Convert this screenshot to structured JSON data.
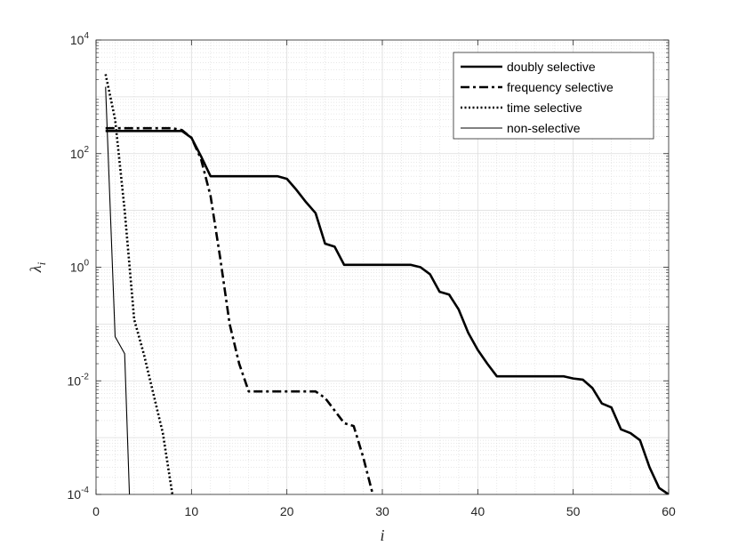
{
  "chart_data": {
    "type": "line",
    "title": "",
    "xlabel": "i",
    "ylabel": "λ_i",
    "ylabel_base": "λ",
    "ylabel_sub": "i",
    "xlim": [
      0,
      60
    ],
    "ylim": [
      0.0001,
      10000
    ],
    "yscale": "log",
    "grid": true,
    "legend_position": "top-right",
    "x_ticks": [
      0,
      10,
      20,
      30,
      40,
      50,
      60
    ],
    "y_ticks": [
      {
        "base": "10",
        "exp": "-4"
      },
      {
        "base": "10",
        "exp": "-2"
      },
      {
        "base": "10",
        "exp": "0"
      },
      {
        "base": "10",
        "exp": "2"
      },
      {
        "base": "10",
        "exp": "4"
      }
    ],
    "series": [
      {
        "name": "doubly selective",
        "style": "solid-thick",
        "x": [
          1,
          9,
          10,
          11,
          12,
          19,
          20,
          21,
          22,
          23,
          24,
          25,
          26,
          33,
          34,
          35,
          36,
          37,
          38,
          39,
          40,
          41,
          42,
          49,
          50,
          51,
          52,
          53,
          54,
          55,
          56,
          57,
          58,
          59,
          60
        ],
        "y": [
          250,
          250,
          190,
          90,
          40,
          40,
          36,
          23,
          14,
          9,
          2.6,
          2.3,
          1.1,
          1.1,
          1.0,
          0.75,
          0.37,
          0.33,
          0.18,
          0.07,
          0.035,
          0.02,
          0.012,
          0.012,
          0.011,
          0.0105,
          0.0075,
          0.004,
          0.0034,
          0.0014,
          0.0012,
          0.0009,
          0.0003,
          0.00013,
          0.0001
        ]
      },
      {
        "name": "frequency selective",
        "style": "dashdot-thick",
        "x": [
          1,
          8,
          9,
          10,
          11,
          12,
          13,
          14,
          15,
          16,
          23,
          24,
          25,
          26,
          27,
          28,
          29
        ],
        "y": [
          280,
          280,
          260,
          190,
          80,
          18,
          1.5,
          0.1,
          0.02,
          0.0065,
          0.0065,
          0.005,
          0.003,
          0.0018,
          0.0016,
          0.00045,
          0.0001
        ]
      },
      {
        "name": "time selective",
        "style": "dotted-thick",
        "x": [
          1,
          2,
          3,
          4,
          5,
          6,
          7,
          8
        ],
        "y": [
          2500,
          400,
          10,
          0.12,
          0.03,
          0.006,
          0.0012,
          0.0001
        ]
      },
      {
        "name": "non-selective",
        "style": "solid-thin",
        "x": [
          1,
          2,
          3,
          3.5
        ],
        "y": [
          1500,
          0.06,
          0.03,
          0.0001
        ]
      }
    ]
  }
}
